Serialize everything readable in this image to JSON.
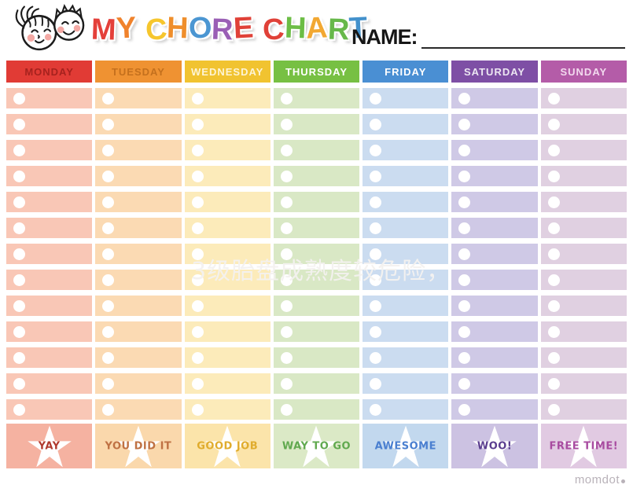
{
  "header": {
    "title": "MY CHORE CHART",
    "title_letters": [
      {
        "ch": "M",
        "color": "#e4403a"
      },
      {
        "ch": "Y",
        "color": "#f0822b"
      },
      {
        "ch": " "
      },
      {
        "ch": "C",
        "color": "#f6c62d"
      },
      {
        "ch": "H",
        "color": "#ef8e2b"
      },
      {
        "ch": "O",
        "color": "#4b96d2"
      },
      {
        "ch": "R",
        "color": "#9a5fb5"
      },
      {
        "ch": "E",
        "color": "#e04138"
      },
      {
        "ch": " "
      },
      {
        "ch": "C",
        "color": "#e04138"
      },
      {
        "ch": "H",
        "color": "#6cbd45"
      },
      {
        "ch": "A",
        "color": "#f2a832"
      },
      {
        "ch": "R",
        "color": "#67b84a"
      },
      {
        "ch": "T",
        "color": "#4391cc"
      }
    ],
    "name_label": "NAME:",
    "illustration": "two-kids-faces"
  },
  "grid": {
    "rows_per_column": 13,
    "checkbox_icon": "white-circle",
    "reward_icon": "white-star",
    "days": [
      {
        "label": "MONDAY",
        "header_bg": "#e13b35",
        "header_text_color": "#a6221e",
        "row_bg": "#f9c7b6",
        "footer_bg": "#f5b2a1",
        "footer_label": "YAY",
        "footer_label_color": "#b03a2e"
      },
      {
        "label": "TUESDAY",
        "header_bg": "#ef9232",
        "header_text_color": "#c4701d",
        "row_bg": "#fbdab3",
        "footer_bg": "#fad8ac",
        "footer_label": "YOU DID IT",
        "footer_label_color": "#bf7143"
      },
      {
        "label": "WEDNESDAY",
        "header_bg": "#f1c330",
        "header_text_color": "#fdf4d5",
        "row_bg": "#fcebba",
        "footer_bg": "#fbe4aa",
        "footer_label": "GOOD JOB",
        "footer_label_color": "#e0ac2d"
      },
      {
        "label": "THURSDAY",
        "header_bg": "#77c043",
        "header_text_color": "#ffffff",
        "row_bg": "#d9e8c5",
        "footer_bg": "#dbe9c6",
        "footer_label": "WAY TO GO",
        "footer_label_color": "#61a94f"
      },
      {
        "label": "FRIDAY",
        "header_bg": "#4a8fd3",
        "header_text_color": "#ffffff",
        "row_bg": "#cbdcf0",
        "footer_bg": "#c2d8ee",
        "footer_label": "AWESOME",
        "footer_label_color": "#4a7fd0"
      },
      {
        "label": "SATURDAY",
        "header_bg": "#7e4fa5",
        "header_text_color": "#ece6f2",
        "row_bg": "#cfc9e6",
        "footer_bg": "#ccc2e2",
        "footer_label": "WOO!",
        "footer_label_color": "#5b3e8f"
      },
      {
        "label": "SUNDAY",
        "header_bg": "#b45ca8",
        "header_text_color": "#f2d9ee",
        "row_bg": "#e0d0e1",
        "footer_bg": "#e1cae2",
        "footer_label": "FREE TIME!",
        "footer_label_color": "#a84ba0"
      }
    ]
  },
  "watermark": {
    "text": "3级胎盘成熟度较危险，",
    "color": "rgba(243,241,239,0.95)"
  },
  "footer": {
    "logo_text": "momdot",
    "logo_color": "#b9b2b9"
  }
}
